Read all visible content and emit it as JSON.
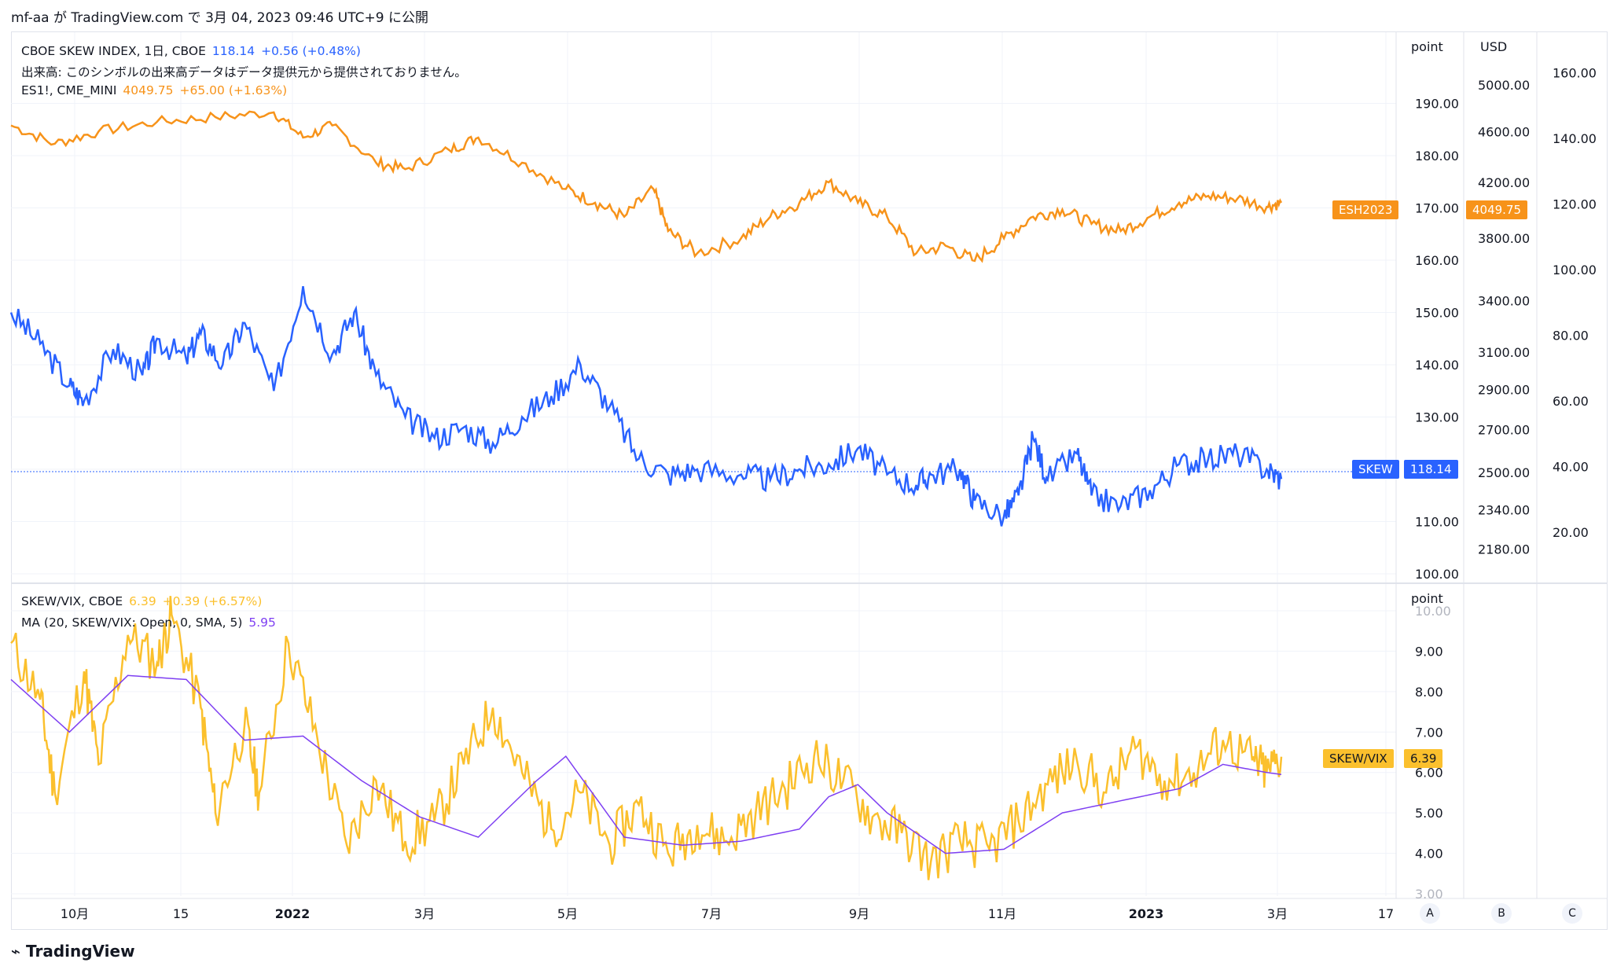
{
  "header": {
    "text": "mf-aa が TradingView.com で 3月 04, 2023 09:46 UTC+9 に公開"
  },
  "main_pane": {
    "legend": {
      "symbol": "CBOE SKEW INDEX, 1日, CBOE",
      "price": "118.14",
      "change": "+0.56 (+0.48%)",
      "volume_note": "出来高: このシンボルの出来高データはデータ提供元から提供されておりません。",
      "symbol2": "ES1!, CME_MINI",
      "price2": "4049.75",
      "change2": "+65.00 (+1.63%)"
    },
    "axis_point_title": "point",
    "axis_usd_title": "USD",
    "skew_tag": {
      "label": "SKEW",
      "value": "118.14"
    },
    "es_tag": {
      "label": "ESH2023",
      "value": "4049.75"
    }
  },
  "sub_pane": {
    "legend": {
      "symbol": "SKEW/VIX, CBOE",
      "price": "6.39",
      "change": "+0.39 (+6.57%)",
      "ma": "MA (20, SKEW/VIX: Open, 0, SMA, 5)",
      "ma_value": "5.95"
    },
    "axis_title": "point",
    "tag": {
      "label": "SKEW/VIX",
      "value": "6.39"
    }
  },
  "time_axis": {
    "ticks": [
      "10月",
      "15",
      "2022",
      "3月",
      "5月",
      "7月",
      "9月",
      "11月",
      "2023",
      "3月",
      "17"
    ]
  },
  "scale_buttons": [
    "A",
    "B",
    "C"
  ],
  "footer": {
    "brand": "TradingView"
  },
  "colors": {
    "skew": "#2962ff",
    "es": "#f7931a",
    "ratio": "#fbc02d",
    "ma": "#7e3ff2"
  },
  "chart_data": [
    {
      "type": "line",
      "title": "CBOE SKEW INDEX, 1日, CBOE",
      "ylabel": "point",
      "ylim": [
        100,
        200
      ],
      "y_ticks": [
        100,
        110,
        120,
        130,
        140,
        150,
        160,
        170,
        180,
        190
      ],
      "x_ticks": [
        "10月",
        "15",
        "2022",
        "3月",
        "5月",
        "7月",
        "9月",
        "11月",
        "2023",
        "3月",
        "17"
      ],
      "series": [
        {
          "name": "SKEW",
          "color": "#2962ff",
          "points": [
            [
              0,
              150
            ],
            [
              0.02,
              144
            ],
            [
              0.04,
              136
            ],
            [
              0.05,
              133
            ],
            [
              0.07,
              143
            ],
            [
              0.09,
              138
            ],
            [
              0.1,
              145
            ],
            [
              0.12,
              141
            ],
            [
              0.13,
              146
            ],
            [
              0.145,
              140
            ],
            [
              0.16,
              148
            ],
            [
              0.18,
              135
            ],
            [
              0.2,
              155
            ],
            [
              0.22,
              142
            ],
            [
              0.235,
              150
            ],
            [
              0.25,
              138
            ],
            [
              0.27,
              130
            ],
            [
              0.29,
              126
            ],
            [
              0.31,
              128
            ],
            [
              0.33,
              125
            ],
            [
              0.35,
              130
            ],
            [
              0.37,
              134
            ],
            [
              0.39,
              140
            ],
            [
              0.41,
              132
            ],
            [
              0.43,
              122
            ],
            [
              0.45,
              119
            ],
            [
              0.47,
              120
            ],
            [
              0.5,
              119
            ],
            [
              0.52,
              118
            ],
            [
              0.54,
              120
            ],
            [
              0.56,
              121
            ],
            [
              0.58,
              124
            ],
            [
              0.6,
              119
            ],
            [
              0.62,
              117
            ],
            [
              0.63,
              119
            ],
            [
              0.65,
              120
            ],
            [
              0.66,
              114
            ],
            [
              0.68,
              111
            ],
            [
              0.69,
              115
            ],
            [
              0.7,
              126
            ],
            [
              0.71,
              118
            ],
            [
              0.73,
              123
            ],
            [
              0.74,
              115
            ],
            [
              0.76,
              113
            ],
            [
              0.78,
              116
            ],
            [
              0.8,
              121
            ],
            [
              0.82,
              122
            ],
            [
              0.84,
              123
            ],
            [
              0.86,
              120
            ],
            [
              0.87,
              118.14
            ]
          ]
        },
        {
          "name": "ESH2023",
          "color": "#f7931a",
          "axis": "USD",
          "points": [
            [
              0,
              4650
            ],
            [
              0.03,
              4500
            ],
            [
              0.06,
              4600
            ],
            [
              0.1,
              4680
            ],
            [
              0.14,
              4720
            ],
            [
              0.18,
              4760
            ],
            [
              0.2,
              4550
            ],
            [
              0.22,
              4650
            ],
            [
              0.25,
              4350
            ],
            [
              0.27,
              4300
            ],
            [
              0.3,
              4450
            ],
            [
              0.32,
              4550
            ],
            [
              0.35,
              4350
            ],
            [
              0.38,
              4150
            ],
            [
              0.4,
              4050
            ],
            [
              0.42,
              3950
            ],
            [
              0.44,
              4150
            ],
            [
              0.45,
              3850
            ],
            [
              0.47,
              3700
            ],
            [
              0.5,
              3800
            ],
            [
              0.52,
              3950
            ],
            [
              0.54,
              4050
            ],
            [
              0.56,
              4200
            ],
            [
              0.58,
              4050
            ],
            [
              0.6,
              3950
            ],
            [
              0.62,
              3700
            ],
            [
              0.64,
              3750
            ],
            [
              0.66,
              3650
            ],
            [
              0.68,
              3800
            ],
            [
              0.7,
              3950
            ],
            [
              0.72,
              4000
            ],
            [
              0.74,
              3900
            ],
            [
              0.76,
              3850
            ],
            [
              0.78,
              3950
            ],
            [
              0.8,
              4050
            ],
            [
              0.82,
              4100
            ],
            [
              0.84,
              4080
            ],
            [
              0.86,
              4020
            ],
            [
              0.87,
              4049.75
            ]
          ]
        }
      ]
    },
    {
      "type": "line",
      "title": "SKEW/VIX, CBOE",
      "ylabel": "point",
      "ylim": [
        3,
        10
      ],
      "y_ticks": [
        3,
        4,
        5,
        6,
        7,
        8,
        9,
        10
      ],
      "series": [
        {
          "name": "SKEW/VIX",
          "color": "#fbc02d",
          "points": [
            [
              0,
              9.2
            ],
            [
              0.02,
              7.8
            ],
            [
              0.03,
              5.5
            ],
            [
              0.05,
              8.5
            ],
            [
              0.06,
              6.2
            ],
            [
              0.08,
              9.4
            ],
            [
              0.1,
              8.7
            ],
            [
              0.11,
              9.9
            ],
            [
              0.13,
              7.6
            ],
            [
              0.14,
              5.0
            ],
            [
              0.16,
              7.2
            ],
            [
              0.17,
              5.5
            ],
            [
              0.19,
              9.2
            ],
            [
              0.21,
              6.8
            ],
            [
              0.23,
              4.2
            ],
            [
              0.25,
              5.8
            ],
            [
              0.27,
              4.3
            ],
            [
              0.29,
              4.8
            ],
            [
              0.31,
              6.2
            ],
            [
              0.33,
              7.6
            ],
            [
              0.35,
              6.0
            ],
            [
              0.37,
              4.6
            ],
            [
              0.39,
              5.5
            ],
            [
              0.41,
              4.2
            ],
            [
              0.43,
              5.2
            ],
            [
              0.45,
              4.0
            ],
            [
              0.47,
              4.7
            ],
            [
              0.49,
              4.3
            ],
            [
              0.51,
              5.0
            ],
            [
              0.53,
              5.6
            ],
            [
              0.55,
              6.4
            ],
            [
              0.57,
              5.8
            ],
            [
              0.59,
              4.9
            ],
            [
              0.61,
              4.5
            ],
            [
              0.63,
              3.8
            ],
            [
              0.65,
              4.3
            ],
            [
              0.67,
              4.1
            ],
            [
              0.69,
              4.8
            ],
            [
              0.71,
              5.7
            ],
            [
              0.73,
              6.3
            ],
            [
              0.75,
              5.5
            ],
            [
              0.77,
              6.6
            ],
            [
              0.79,
              5.8
            ],
            [
              0.81,
              6.0
            ],
            [
              0.83,
              6.8
            ],
            [
              0.85,
              6.3
            ],
            [
              0.86,
              6.0
            ],
            [
              0.87,
              6.39
            ]
          ]
        },
        {
          "name": "MA (20, SKEW/VIX: Open, 0, SMA, 5)",
          "color": "#7e3ff2",
          "points": [
            [
              0,
              8.3
            ],
            [
              0.04,
              7.0
            ],
            [
              0.08,
              8.4
            ],
            [
              0.12,
              8.3
            ],
            [
              0.16,
              6.8
            ],
            [
              0.2,
              6.9
            ],
            [
              0.24,
              5.8
            ],
            [
              0.28,
              4.9
            ],
            [
              0.32,
              4.4
            ],
            [
              0.36,
              5.8
            ],
            [
              0.38,
              6.4
            ],
            [
              0.42,
              4.4
            ],
            [
              0.46,
              4.2
            ],
            [
              0.5,
              4.3
            ],
            [
              0.54,
              4.6
            ],
            [
              0.56,
              5.4
            ],
            [
              0.58,
              5.7
            ],
            [
              0.6,
              5.0
            ],
            [
              0.64,
              4.0
            ],
            [
              0.68,
              4.1
            ],
            [
              0.72,
              5.0
            ],
            [
              0.76,
              5.3
            ],
            [
              0.8,
              5.6
            ],
            [
              0.83,
              6.2
            ],
            [
              0.86,
              6.0
            ],
            [
              0.87,
              5.95
            ]
          ]
        }
      ]
    }
  ]
}
